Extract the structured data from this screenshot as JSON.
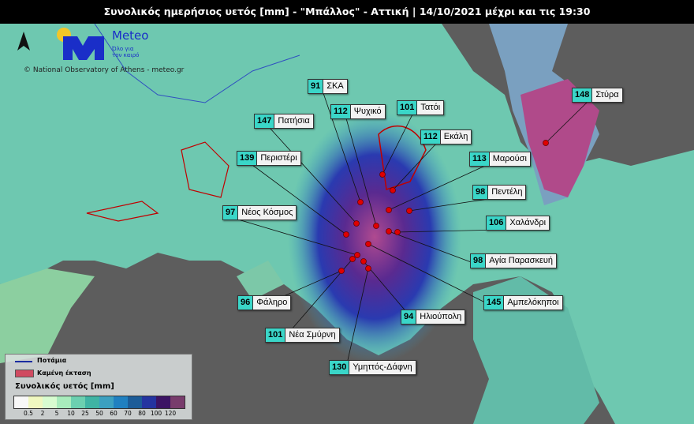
{
  "title": "Συνολικός ημερήσιος υετός [mm] - \"Μπάλλος\" - Αττική | 14/10/2021 μέχρι και τις 19:30",
  "logo": {
    "brand": "Meteo",
    "tagline_1": "Όλο για",
    "tagline_2": "τον καιρό"
  },
  "credit": "© National Observatory of Athens - meteo.gr",
  "north_arrow": "north-arrow-icon",
  "stations": [
    {
      "value": "91",
      "name": "ΣΚΑ"
    },
    {
      "value": "112",
      "name": "Ψυχικό"
    },
    {
      "value": "101",
      "name": "Τατόι"
    },
    {
      "value": "147",
      "name": "Πατήσια"
    },
    {
      "value": "112",
      "name": "Εκάλη"
    },
    {
      "value": "139",
      "name": "Περιστέρι"
    },
    {
      "value": "113",
      "name": "Μαρούσι"
    },
    {
      "value": "148",
      "name": "Στύρα"
    },
    {
      "value": "98",
      "name": "Πεντέλη"
    },
    {
      "value": "97",
      "name": "Νέος Κόσμος"
    },
    {
      "value": "106",
      "name": "Χαλάνδρι"
    },
    {
      "value": "98",
      "name": "Αγία Παρασκευή"
    },
    {
      "value": "96",
      "name": "Φάληρο"
    },
    {
      "value": "145",
      "name": "Αμπελόκηποι"
    },
    {
      "value": "94",
      "name": "Ηλιούπολη"
    },
    {
      "value": "101",
      "name": "Νέα Σμύρνη"
    },
    {
      "value": "130",
      "name": "Υμηττός-Δάφνη"
    }
  ],
  "legend": {
    "rivers": "Ποτάμια",
    "burned": "Καμένη έκταση",
    "scale_title": "Συνολικός υετός [mm]",
    "colors": [
      "#f8f8f8",
      "#f0f8c0",
      "#d8fcd0",
      "#a8ecbc",
      "#6cd0b0",
      "#40b4a4",
      "#3ca0c0",
      "#2080c0",
      "#1c5c98",
      "#2434a0",
      "#3c1464",
      "#783c6c"
    ],
    "ticks": [
      "0.5",
      "2",
      "5",
      "10",
      "25",
      "50",
      "60",
      "70",
      "80",
      "100",
      "120"
    ]
  }
}
